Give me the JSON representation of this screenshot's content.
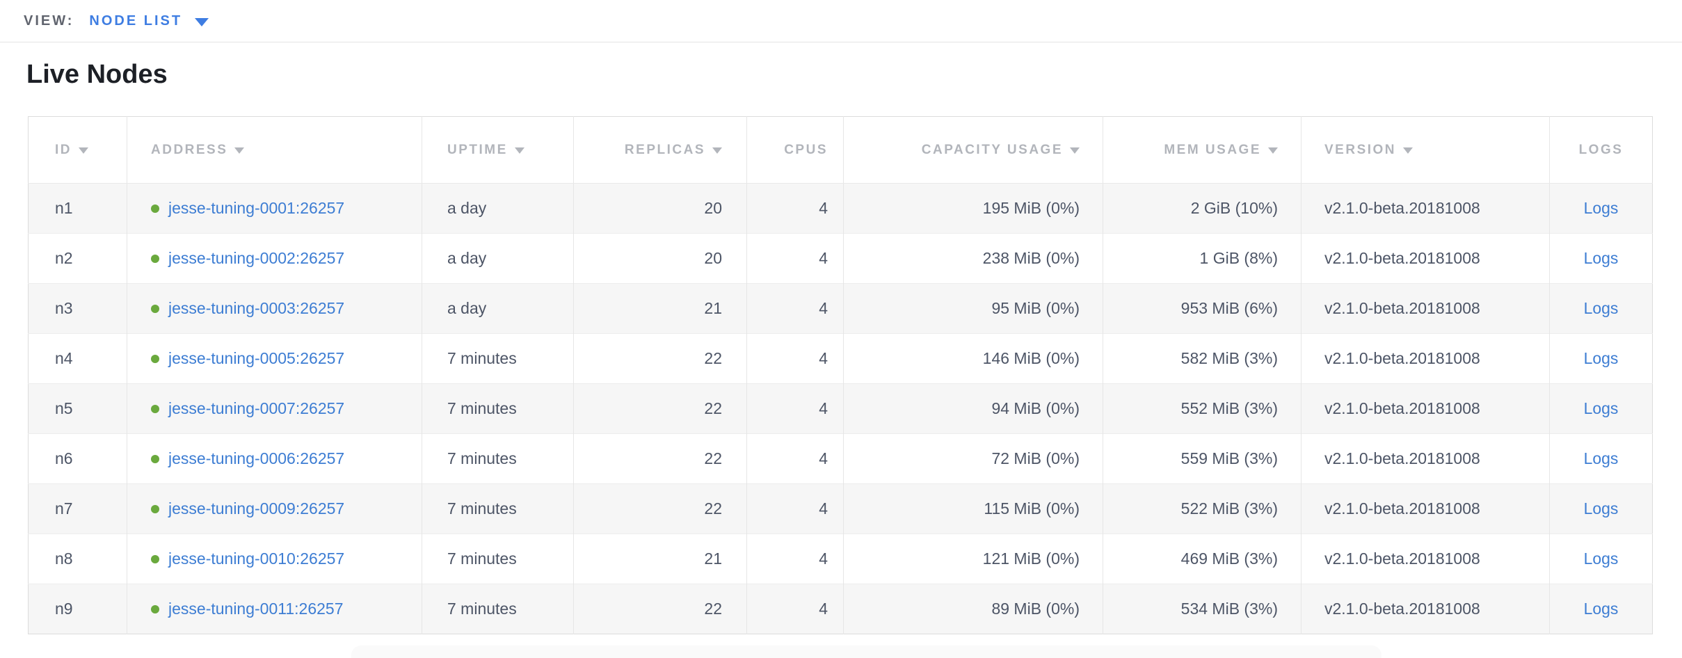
{
  "view_bar": {
    "label": "VIEW:",
    "selected_view": "NODE LIST",
    "dropdown_icon": "caret-down-icon"
  },
  "page": {
    "title": "Live Nodes"
  },
  "table": {
    "columns": [
      {
        "key": "id",
        "label": "ID",
        "sortable": true,
        "align": "left"
      },
      {
        "key": "address",
        "label": "ADDRESS",
        "sortable": true,
        "align": "left"
      },
      {
        "key": "uptime",
        "label": "UPTIME",
        "sortable": true,
        "align": "left"
      },
      {
        "key": "replicas",
        "label": "REPLICAS",
        "sortable": true,
        "align": "right"
      },
      {
        "key": "cpus",
        "label": "CPUS",
        "sortable": false,
        "align": "right"
      },
      {
        "key": "capacity_usage",
        "label": "CAPACITY USAGE",
        "sortable": true,
        "align": "right"
      },
      {
        "key": "mem_usage",
        "label": "MEM USAGE",
        "sortable": true,
        "align": "right"
      },
      {
        "key": "version",
        "label": "VERSION",
        "sortable": true,
        "align": "left"
      },
      {
        "key": "logs",
        "label": "LOGS",
        "sortable": false,
        "align": "center"
      }
    ],
    "logs_label": "Logs",
    "status_icon": "green-dot-icon",
    "rows": [
      {
        "id": "n1",
        "address": "jesse-tuning-0001:26257",
        "uptime": "a day",
        "replicas": "20",
        "cpus": "4",
        "capacity_usage": "195 MiB (0%)",
        "mem_usage": "2 GiB (10%)",
        "version": "v2.1.0-beta.20181008"
      },
      {
        "id": "n2",
        "address": "jesse-tuning-0002:26257",
        "uptime": "a day",
        "replicas": "20",
        "cpus": "4",
        "capacity_usage": "238 MiB (0%)",
        "mem_usage": "1 GiB (8%)",
        "version": "v2.1.0-beta.20181008"
      },
      {
        "id": "n3",
        "address": "jesse-tuning-0003:26257",
        "uptime": "a day",
        "replicas": "21",
        "cpus": "4",
        "capacity_usage": "95 MiB (0%)",
        "mem_usage": "953 MiB (6%)",
        "version": "v2.1.0-beta.20181008"
      },
      {
        "id": "n4",
        "address": "jesse-tuning-0005:26257",
        "uptime": "7 minutes",
        "replicas": "22",
        "cpus": "4",
        "capacity_usage": "146 MiB (0%)",
        "mem_usage": "582 MiB (3%)",
        "version": "v2.1.0-beta.20181008"
      },
      {
        "id": "n5",
        "address": "jesse-tuning-0007:26257",
        "uptime": "7 minutes",
        "replicas": "22",
        "cpus": "4",
        "capacity_usage": "94 MiB (0%)",
        "mem_usage": "552 MiB (3%)",
        "version": "v2.1.0-beta.20181008"
      },
      {
        "id": "n6",
        "address": "jesse-tuning-0006:26257",
        "uptime": "7 minutes",
        "replicas": "22",
        "cpus": "4",
        "capacity_usage": "72 MiB (0%)",
        "mem_usage": "559 MiB (3%)",
        "version": "v2.1.0-beta.20181008"
      },
      {
        "id": "n7",
        "address": "jesse-tuning-0009:26257",
        "uptime": "7 minutes",
        "replicas": "22",
        "cpus": "4",
        "capacity_usage": "115 MiB (0%)",
        "mem_usage": "522 MiB (3%)",
        "version": "v2.1.0-beta.20181008"
      },
      {
        "id": "n8",
        "address": "jesse-tuning-0010:26257",
        "uptime": "7 minutes",
        "replicas": "21",
        "cpus": "4",
        "capacity_usage": "121 MiB (0%)",
        "mem_usage": "469 MiB (3%)",
        "version": "v2.1.0-beta.20181008"
      },
      {
        "id": "n9",
        "address": "jesse-tuning-0011:26257",
        "uptime": "7 minutes",
        "replicas": "22",
        "cpus": "4",
        "capacity_usage": "89 MiB (0%)",
        "mem_usage": "534 MiB (3%)",
        "version": "v2.1.0-beta.20181008"
      }
    ]
  },
  "colors": {
    "accent_blue": "#3e7de2",
    "link_blue": "#3d7dd3",
    "live_green": "#6aa93d",
    "header_gray": "#b2b5bb",
    "cell_text": "#4d5566",
    "title_text": "#1d2026",
    "alt_row_bg": "#f6f6f6"
  }
}
